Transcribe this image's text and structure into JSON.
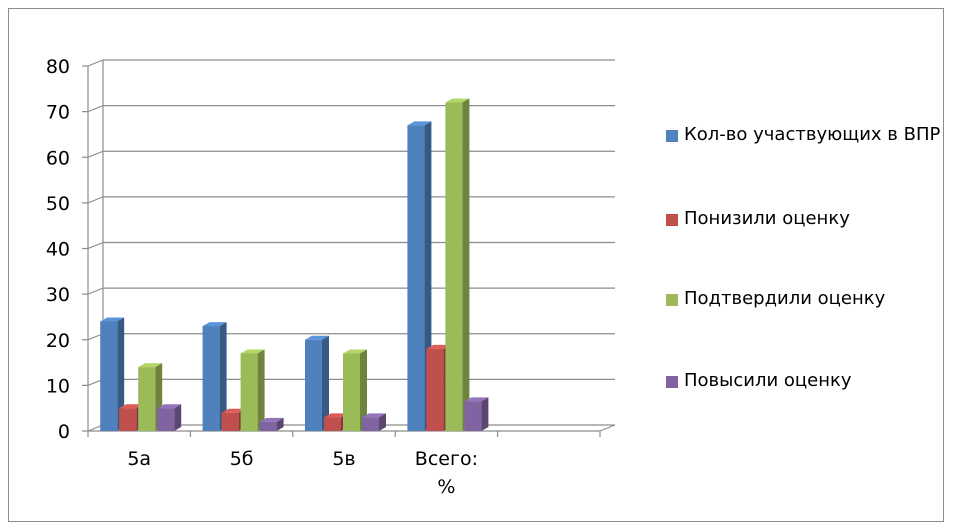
{
  "chart_data": {
    "type": "bar",
    "categories": [
      "5а",
      "5б",
      "5в",
      "Всего:\n%",
      ""
    ],
    "series": [
      {
        "name": "Кол-во участвующих в ВПР",
        "color": "#4f81bd",
        "values": [
          24,
          23,
          20,
          67,
          null
        ]
      },
      {
        "name": "Понизили оценку",
        "color": "#c0504d",
        "values": [
          5,
          4,
          3,
          18,
          null
        ]
      },
      {
        "name": "Подтвердили оценку",
        "color": "#9bbb59",
        "values": [
          14,
          17,
          17,
          72,
          null
        ]
      },
      {
        "name": "Повысили оценку",
        "color": "#8064a2",
        "values": [
          5,
          2,
          3,
          6.5,
          null
        ]
      }
    ],
    "yticks": [
      "0",
      "10",
      "20",
      "30",
      "40",
      "50",
      "60",
      "70",
      "80"
    ],
    "ylim": [
      0,
      80
    ],
    "grid": true,
    "legend": "right",
    "style": "3d-clustered-column"
  }
}
